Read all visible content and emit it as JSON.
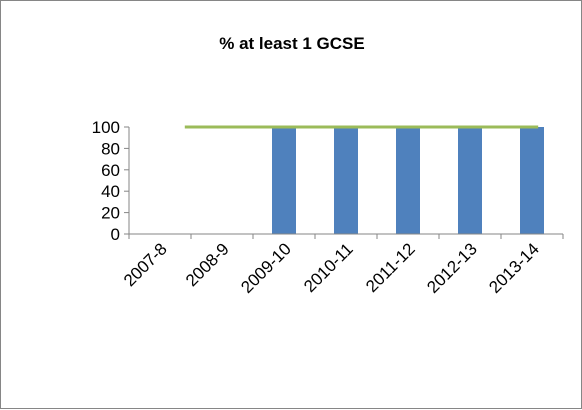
{
  "chart_data": {
    "type": "bar",
    "title": "% at least 1 GCSE",
    "xlabel": "",
    "ylabel": "",
    "categories": [
      "2007-8",
      "2008-9",
      "2009-10",
      "2010-11",
      "2011-12",
      "2012-13",
      "2013-14"
    ],
    "series": [
      {
        "type": "bar",
        "values": [
          null,
          null,
          100,
          100,
          100,
          100,
          100
        ],
        "color": "#4F81BD"
      },
      {
        "type": "line",
        "values": [
          null,
          100,
          100,
          100,
          100,
          100,
          100
        ],
        "color": "#9BBB59"
      }
    ],
    "ylim": [
      0,
      100
    ],
    "yticks": [
      0,
      20,
      40,
      60,
      80,
      100
    ],
    "grid": false,
    "legend": "none"
  }
}
